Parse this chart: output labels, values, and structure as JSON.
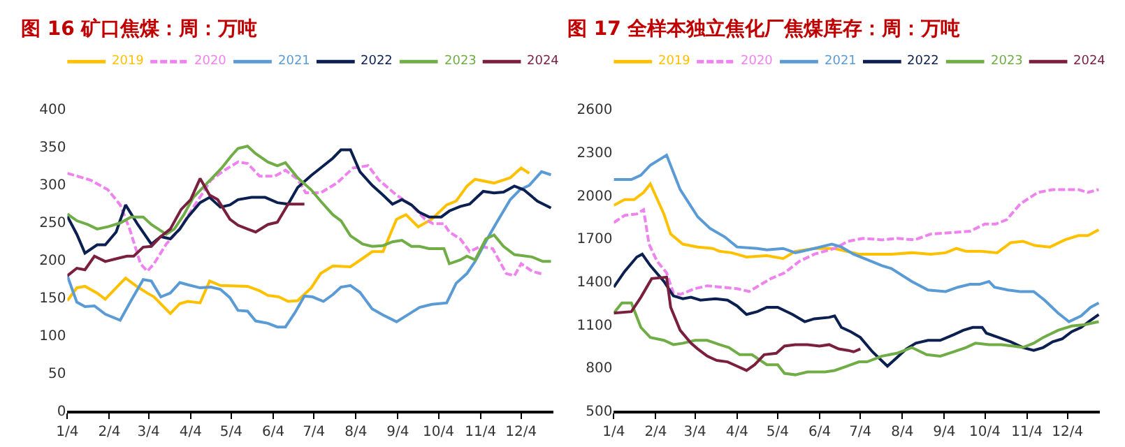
{
  "chart_data": [
    {
      "type": "line",
      "title": "图 16 矿口焦煤：周：万吨",
      "xlim": [
        "--01-04",
        "--12-28"
      ],
      "ylim": [
        0,
        400
      ],
      "yticks": [
        0,
        50,
        100,
        150,
        200,
        250,
        300,
        350,
        400
      ],
      "xticks": [
        {
          "value": "--01-04",
          "label": "1/4"
        },
        {
          "value": "--02-04",
          "label": "2/4"
        },
        {
          "value": "--03-04",
          "label": "3/4"
        },
        {
          "value": "--04-04",
          "label": "4/4"
        },
        {
          "value": "--05-04",
          "label": "5/4"
        },
        {
          "value": "--06-04",
          "label": "6/4"
        },
        {
          "value": "--07-04",
          "label": "7/4"
        },
        {
          "value": "--08-04",
          "label": "8/4"
        },
        {
          "value": "--09-04",
          "label": "9/4"
        },
        {
          "value": "--10-04",
          "label": "10/4"
        },
        {
          "value": "--11-04",
          "label": "11/4"
        },
        {
          "value": "--12-04",
          "label": "12/4"
        }
      ],
      "grid": false,
      "legend": "top",
      "marker": "none",
      "series": [
        {
          "name": "2019",
          "color": "#ffc000",
          "line_style": "solid",
          "x": [
            "--01-04",
            "--01-11",
            "--01-17",
            "--01-26",
            "--02-01",
            "--02-09",
            "--02-16",
            "--02-25",
            "--03-03",
            "--03-08",
            "--03-20",
            "--03-27",
            "--04-02",
            "--04-11",
            "--04-18",
            "--04-26",
            "--05-16",
            "--05-25",
            "--05-31",
            "--06-08",
            "--06-15",
            "--06-22",
            "--07-02",
            "--07-09",
            "--07-18",
            "--07-31",
            "--08-09",
            "--08-16",
            "--08-24",
            "--09-03",
            "--09-10",
            "--09-19",
            "--09-29",
            "--10-10",
            "--10-17",
            "--10-25",
            "--10-31",
            "--11-14",
            "--11-26",
            "--12-04",
            "--12-10"
          ],
          "values": [
            146,
            163,
            165,
            156,
            148,
            163,
            176,
            164,
            156,
            151,
            129,
            142,
            145,
            143,
            172,
            166,
            165,
            159,
            153,
            151,
            145,
            146,
            163,
            182,
            192,
            191,
            202,
            211,
            211,
            254,
            260,
            244,
            254,
            273,
            278,
            298,
            307,
            302,
            309,
            322,
            315
          ]
        },
        {
          "name": "2020",
          "color": "#ee82ee",
          "line_style": "dashed",
          "x": [
            "--01-04",
            "--01-21",
            "--02-03",
            "--02-12",
            "--02-19",
            "--02-27",
            "--03-03",
            "--03-08",
            "--03-17",
            "--03-27",
            "--04-06",
            "--04-13",
            "--04-19",
            "--04-29",
            "--05-09",
            "--05-16",
            "--05-25",
            "--06-05",
            "--06-13",
            "--06-22",
            "--06-28",
            "--07-09",
            "--07-21",
            "--08-02",
            "--08-13",
            "--08-21",
            "--09-03",
            "--09-14",
            "--09-24",
            "--09-30",
            "--10-08",
            "--10-12",
            "--10-20",
            "--10-27",
            "--11-04",
            "--11-13",
            "--11-23",
            "--11-29",
            "--12-04",
            "--12-12",
            "--12-20"
          ],
          "values": [
            315,
            306,
            293,
            273,
            241,
            195,
            185,
            195,
            221,
            241,
            270,
            289,
            306,
            319,
            330,
            328,
            311,
            311,
            319,
            307,
            289,
            289,
            302,
            322,
            325,
            306,
            286,
            273,
            254,
            248,
            248,
            237,
            228,
            211,
            218,
            215,
            182,
            179,
            195,
            185,
            181
          ]
        },
        {
          "name": "2021",
          "color": "#5b9bd5",
          "line_style": "solid",
          "x": [
            "--01-04",
            "--01-11",
            "--01-17",
            "--01-24",
            "--02-01",
            "--02-12",
            "--02-20",
            "--02-29",
            "--03-06",
            "--03-13",
            "--03-20",
            "--03-27",
            "--04-02",
            "--04-11",
            "--04-19",
            "--04-26",
            "--05-03",
            "--05-09",
            "--05-16",
            "--05-22",
            "--05-31",
            "--06-07",
            "--06-13",
            "--06-20",
            "--06-27",
            "--07-03",
            "--07-11",
            "--07-18",
            "--07-24",
            "--07-31",
            "--08-07",
            "--08-16",
            "--08-24",
            "--09-03",
            "--09-12",
            "--09-20",
            "--09-29",
            "--10-10",
            "--10-17",
            "--10-25",
            "--10-31",
            "--11-09",
            "--11-16",
            "--11-26",
            "--12-03",
            "--12-10",
            "--12-19",
            "--12-26"
          ],
          "values": [
            179,
            144,
            138,
            139,
            128,
            120,
            146,
            174,
            172,
            151,
            156,
            170,
            167,
            163,
            164,
            161,
            150,
            133,
            132,
            119,
            116,
            111,
            111,
            130,
            152,
            151,
            145,
            154,
            164,
            166,
            157,
            135,
            127,
            118,
            128,
            137,
            141,
            143,
            169,
            182,
            198,
            228,
            250,
            280,
            293,
            299,
            317,
            313
          ]
        },
        {
          "name": "2022",
          "color": "#0b2050",
          "line_style": "solid",
          "x": [
            "--01-04",
            "--01-11",
            "--01-17",
            "--01-26",
            "--02-01",
            "--02-09",
            "--02-16",
            "--02-25",
            "--03-06",
            "--03-13",
            "--03-20",
            "--03-27",
            "--04-02",
            "--04-11",
            "--04-18",
            "--04-26",
            "--05-03",
            "--05-09",
            "--05-19",
            "--05-29",
            "--06-07",
            "--06-15",
            "--06-22",
            "--07-02",
            "--07-09",
            "--07-18",
            "--07-24",
            "--07-31",
            "--08-07",
            "--08-16",
            "--08-24",
            "--08-31",
            "--09-07",
            "--09-14",
            "--09-20",
            "--09-27",
            "--10-06",
            "--10-12",
            "--10-20",
            "--10-27",
            "--11-06",
            "--11-14",
            "--11-21",
            "--11-29",
            "--12-06",
            "--12-16",
            "--12-26"
          ],
          "values": [
            258,
            234,
            209,
            220,
            220,
            237,
            273,
            247,
            221,
            231,
            228,
            241,
            257,
            276,
            283,
            270,
            273,
            280,
            283,
            283,
            276,
            274,
            296,
            312,
            322,
            335,
            346,
            346,
            317,
            299,
            286,
            274,
            280,
            273,
            263,
            257,
            257,
            265,
            271,
            274,
            291,
            289,
            290,
            298,
            293,
            278,
            269
          ]
        },
        {
          "name": "2023",
          "color": "#70ad47",
          "line_style": "solid",
          "x": [
            "--01-04",
            "--01-11",
            "--01-19",
            "--01-26",
            "--02-03",
            "--02-12",
            "--02-20",
            "--02-29",
            "--03-06",
            "--03-17",
            "--03-23",
            "--03-30",
            "--04-06",
            "--04-13",
            "--04-19",
            "--04-27",
            "--05-04",
            "--05-09",
            "--05-16",
            "--05-22",
            "--05-31",
            "--06-07",
            "--06-13",
            "--06-22",
            "--07-02",
            "--07-09",
            "--07-18",
            "--07-24",
            "--07-31",
            "--08-09",
            "--08-16",
            "--08-24",
            "--08-31",
            "--09-07",
            "--09-14",
            "--09-20",
            "--09-27",
            "--10-08",
            "--10-12",
            "--10-20",
            "--10-25",
            "--10-31",
            "--11-08",
            "--11-14",
            "--11-21",
            "--11-29",
            "--12-12",
            "--12-20",
            "--12-26"
          ],
          "values": [
            261,
            252,
            247,
            241,
            244,
            249,
            257,
            257,
            247,
            234,
            241,
            260,
            283,
            296,
            307,
            322,
            338,
            348,
            351,
            341,
            330,
            325,
            329,
            309,
            293,
            278,
            260,
            252,
            232,
            221,
            218,
            219,
            224,
            226,
            218,
            218,
            215,
            215,
            195,
            200,
            205,
            200,
            228,
            233,
            218,
            207,
            204,
            198,
            198
          ]
        },
        {
          "name": "2024",
          "color": "#7b1f3f",
          "line_style": "solid",
          "x": [
            "--01-04",
            "--01-11",
            "--01-17",
            "--01-24",
            "--02-01",
            "--02-10",
            "--02-17",
            "--02-22",
            "--02-29",
            "--03-06",
            "--03-13",
            "--03-20",
            "--03-28",
            "--04-04",
            "--04-11",
            "--04-18",
            "--04-24",
            "--05-03",
            "--05-09",
            "--05-16",
            "--05-22",
            "--05-31",
            "--06-07",
            "--06-15",
            "--06-27"
          ],
          "values": [
            179,
            189,
            187,
            205,
            198,
            202,
            205,
            205,
            217,
            218,
            231,
            241,
            267,
            280,
            308,
            286,
            280,
            254,
            246,
            241,
            237,
            247,
            250,
            274,
            274
          ]
        }
      ]
    },
    {
      "type": "line",
      "title": "图 17 全样本独立焦化厂焦煤库存：周：万吨",
      "xlim": [
        "--01-04",
        "--12-28"
      ],
      "ylim": [
        500,
        2600
      ],
      "yticks": [
        500,
        800,
        1100,
        1400,
        1700,
        2000,
        2300,
        2600
      ],
      "xticks": [
        {
          "value": "--01-04",
          "label": "1/4"
        },
        {
          "value": "--02-04",
          "label": "2/4"
        },
        {
          "value": "--03-04",
          "label": "3/4"
        },
        {
          "value": "--04-04",
          "label": "4/4"
        },
        {
          "value": "--05-04",
          "label": "5/4"
        },
        {
          "value": "--06-04",
          "label": "6/4"
        },
        {
          "value": "--07-04",
          "label": "7/4"
        },
        {
          "value": "--08-04",
          "label": "8/4"
        },
        {
          "value": "--09-04",
          "label": "9/4"
        },
        {
          "value": "--10-04",
          "label": "10/4"
        },
        {
          "value": "--11-04",
          "label": "11/4"
        },
        {
          "value": "--12-04",
          "label": "12/4"
        }
      ],
      "grid": false,
      "legend": "top",
      "marker": "none",
      "series": [
        {
          "name": "2019",
          "color": "#ffc000",
          "line_style": "solid",
          "x": [
            "--01-04",
            "--01-12",
            "--01-19",
            "--01-26",
            "--01-31",
            "--02-10",
            "--02-15",
            "--02-24",
            "--03-06",
            "--03-17",
            "--03-22",
            "--03-31",
            "--04-11",
            "--04-26",
            "--05-08",
            "--05-17",
            "--05-31",
            "--06-15",
            "--07-03",
            "--07-20",
            "--07-27",
            "--08-11",
            "--08-25",
            "--09-05",
            "--09-13",
            "--09-20",
            "--10-01",
            "--10-13",
            "--10-23",
            "--11-01",
            "--11-10",
            "--11-21",
            "--12-02",
            "--12-12",
            "--12-19",
            "--12-27"
          ],
          "values": [
            1930,
            1970,
            1970,
            2020,
            2080,
            1870,
            1730,
            1660,
            1640,
            1630,
            1610,
            1600,
            1570,
            1580,
            1560,
            1610,
            1630,
            1630,
            1590,
            1590,
            1590,
            1600,
            1590,
            1600,
            1630,
            1610,
            1610,
            1600,
            1670,
            1680,
            1650,
            1640,
            1690,
            1720,
            1720,
            1760
          ]
        },
        {
          "name": "2020",
          "color": "#ee82ee",
          "line_style": "dashed",
          "x": [
            "--01-04",
            "--01-12",
            "--01-21",
            "--01-26",
            "--01-30",
            "--02-05",
            "--02-12",
            "--02-17",
            "--02-22",
            "--03-04",
            "--03-13",
            "--03-24",
            "--04-04",
            "--04-13",
            "--04-20",
            "--04-29",
            "--05-09",
            "--05-20",
            "--05-31",
            "--06-15",
            "--06-25",
            "--07-06",
            "--07-20",
            "--07-31",
            "--08-13",
            "--08-25",
            "--09-09",
            "--09-23",
            "--10-04",
            "--10-12",
            "--10-20",
            "--10-30",
            "--11-12",
            "--11-23",
            "--12-04",
            "--12-12",
            "--12-19",
            "--12-27"
          ],
          "values": [
            1810,
            1860,
            1870,
            1900,
            1660,
            1540,
            1460,
            1320,
            1310,
            1350,
            1370,
            1360,
            1350,
            1330,
            1370,
            1420,
            1460,
            1540,
            1590,
            1630,
            1680,
            1700,
            1690,
            1700,
            1690,
            1730,
            1740,
            1750,
            1800,
            1800,
            1830,
            1940,
            2020,
            2040,
            2040,
            2040,
            2020,
            2040
          ]
        },
        {
          "name": "2021",
          "color": "#5b9bd5",
          "line_style": "solid",
          "x": [
            "--01-04",
            "--01-17",
            "--01-24",
            "--01-31",
            "--02-12",
            "--02-22",
            "--03-06",
            "--03-15",
            "--03-26",
            "--04-04",
            "--04-19",
            "--04-26",
            "--05-08",
            "--05-17",
            "--05-31",
            "--06-13",
            "--06-20",
            "--06-29",
            "--07-07",
            "--07-20",
            "--07-27",
            "--08-11",
            "--08-23",
            "--09-05",
            "--09-14",
            "--09-23",
            "--09-30",
            "--10-07",
            "--10-11",
            "--10-21",
            "--10-30",
            "--11-09",
            "--11-17",
            "--11-27",
            "--12-05",
            "--12-14",
            "--12-21",
            "--12-27"
          ],
          "values": [
            2110,
            2110,
            2140,
            2210,
            2280,
            2040,
            1850,
            1770,
            1710,
            1640,
            1630,
            1620,
            1630,
            1600,
            1630,
            1660,
            1640,
            1590,
            1560,
            1510,
            1490,
            1400,
            1340,
            1330,
            1360,
            1380,
            1380,
            1400,
            1360,
            1340,
            1330,
            1330,
            1270,
            1180,
            1120,
            1160,
            1220,
            1250
          ]
        },
        {
          "name": "2022",
          "color": "#0b2050",
          "line_style": "solid",
          "x": [
            "--01-04",
            "--01-12",
            "--01-21",
            "--01-25",
            "--01-31",
            "--02-10",
            "--02-17",
            "--02-24",
            "--03-01",
            "--03-08",
            "--03-19",
            "--03-28",
            "--04-04",
            "--04-11",
            "--04-19",
            "--04-26",
            "--05-04",
            "--05-15",
            "--05-24",
            "--05-31",
            "--06-11",
            "--06-15",
            "--06-20",
            "--06-27",
            "--07-04",
            "--07-13",
            "--07-24",
            "--07-31",
            "--08-07",
            "--08-14",
            "--08-23",
            "--09-01",
            "--09-11",
            "--09-18",
            "--09-25",
            "--10-02",
            "--10-05",
            "--10-14",
            "--10-23",
            "--11-01",
            "--11-09",
            "--11-16",
            "--11-23",
            "--11-30",
            "--12-07",
            "--12-14",
            "--12-21",
            "--12-27"
          ],
          "values": [
            1360,
            1470,
            1570,
            1590,
            1510,
            1400,
            1300,
            1280,
            1290,
            1270,
            1280,
            1270,
            1230,
            1170,
            1190,
            1220,
            1220,
            1170,
            1120,
            1140,
            1150,
            1160,
            1080,
            1050,
            1010,
            910,
            810,
            870,
            930,
            970,
            990,
            990,
            1030,
            1060,
            1080,
            1080,
            1040,
            1010,
            980,
            940,
            920,
            940,
            980,
            1000,
            1050,
            1080,
            1130,
            1170
          ]
        },
        {
          "name": "2023",
          "color": "#70ad47",
          "line_style": "solid",
          "x": [
            "--01-04",
            "--01-10",
            "--01-17",
            "--01-24",
            "--01-31",
            "--02-10",
            "--02-17",
            "--02-24",
            "--03-04",
            "--03-13",
            "--03-22",
            "--03-29",
            "--04-06",
            "--04-15",
            "--04-26",
            "--05-04",
            "--05-09",
            "--05-17",
            "--05-26",
            "--06-08",
            "--06-15",
            "--06-24",
            "--07-03",
            "--07-09",
            "--07-20",
            "--07-31",
            "--08-11",
            "--08-22",
            "--09-01",
            "--09-11",
            "--09-20",
            "--09-27",
            "--10-07",
            "--10-16",
            "--10-25",
            "--11-01",
            "--11-09",
            "--11-16",
            "--11-27",
            "--12-07",
            "--12-17",
            "--12-27"
          ],
          "values": [
            1180,
            1250,
            1250,
            1080,
            1010,
            990,
            960,
            970,
            990,
            990,
            960,
            940,
            890,
            890,
            820,
            820,
            760,
            750,
            770,
            770,
            780,
            810,
            840,
            840,
            880,
            900,
            940,
            890,
            880,
            910,
            940,
            970,
            960,
            960,
            950,
            940,
            970,
            1010,
            1060,
            1090,
            1100,
            1120
          ]
        },
        {
          "name": "2024",
          "color": "#7b1f3f",
          "line_style": "solid",
          "x": [
            "--01-04",
            "--01-17",
            "--01-24",
            "--02-01",
            "--02-12",
            "--02-15",
            "--02-22",
            "--03-01",
            "--03-06",
            "--03-13",
            "--03-20",
            "--03-28",
            "--04-04",
            "--04-11",
            "--04-17",
            "--04-24",
            "--05-03",
            "--05-09",
            "--05-17",
            "--05-26",
            "--06-04",
            "--06-11",
            "--06-18",
            "--06-25",
            "--06-29",
            "--07-04"
          ],
          "values": [
            1180,
            1190,
            1290,
            1420,
            1430,
            1220,
            1060,
            970,
            930,
            880,
            850,
            840,
            810,
            780,
            820,
            890,
            900,
            950,
            960,
            960,
            950,
            960,
            930,
            920,
            910,
            930
          ]
        }
      ]
    }
  ]
}
